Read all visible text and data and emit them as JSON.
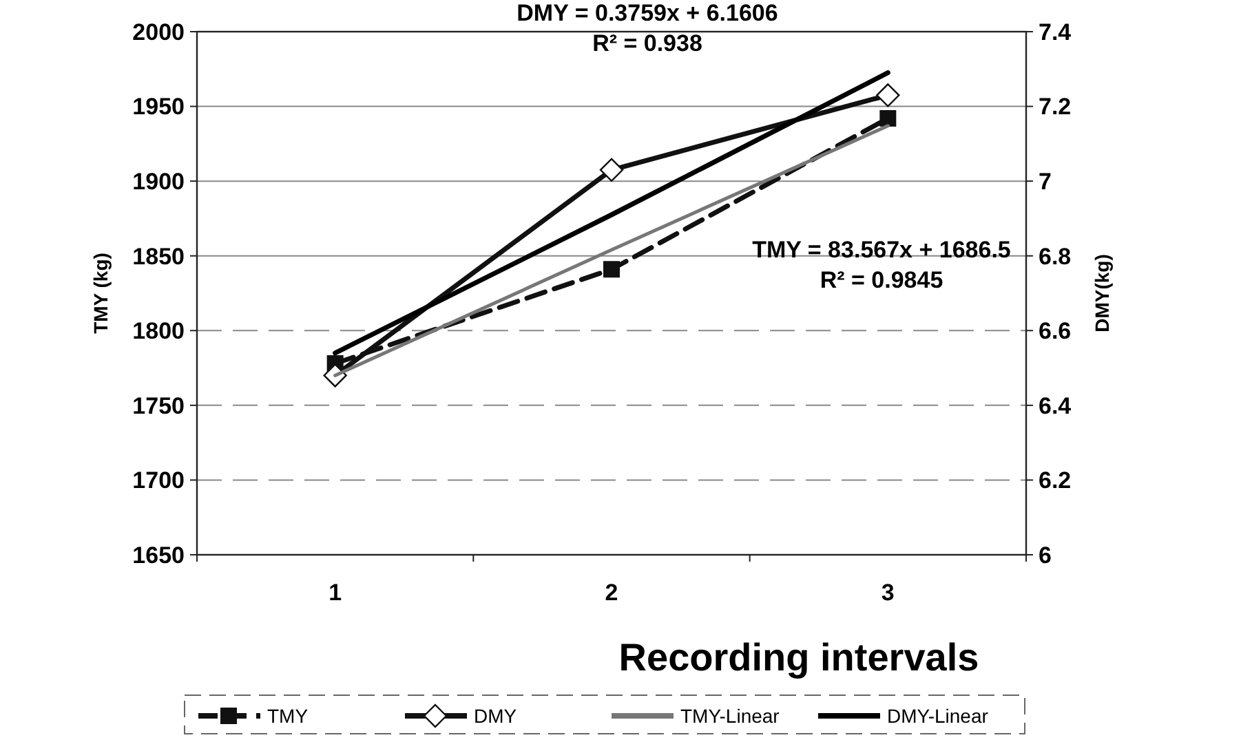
{
  "chart_data": {
    "type": "line",
    "xlabel": "Recording intervals",
    "ylabel": "TMY (kg)",
    "y2label": "DMY(kg)",
    "categories": [
      "1",
      "2",
      "3"
    ],
    "series": [
      {
        "name": "TMY",
        "color": "#111111",
        "values": [
          1778,
          1841,
          1942
        ],
        "marker": "square",
        "line_style": "dashed"
      },
      {
        "name": "DMY",
        "color": "#111111",
        "values": [
          6.48,
          7.03,
          7.23
        ],
        "axis": "y2",
        "marker": "diamond",
        "line_style": "solid"
      },
      {
        "name": "TMY-Linear",
        "color": "#777777",
        "values": [
          1770,
          1854,
          1937
        ],
        "marker": "none",
        "line_style": "solid"
      },
      {
        "name": "DMY-Linear",
        "color": "#000000",
        "values": [
          6.54,
          6.91,
          7.29
        ],
        "axis": "y2",
        "marker": "none",
        "line_style": "solid"
      }
    ],
    "ylim": [
      1650,
      2000
    ],
    "yticks": [
      1650,
      1700,
      1750,
      1800,
      1850,
      1900,
      1950,
      2000
    ],
    "y2lim": [
      6,
      7.4
    ],
    "y2ticks": [
      6,
      6.2,
      6.4,
      6.6,
      6.8,
      7,
      7.2,
      7.4
    ],
    "grid": "y",
    "legend": "bottom",
    "annotations": [
      "DMY = 0.3759x + 6.1606\nR² = 0.938",
      "TMY = 83.567x + 1686.5\nR² = 0.9845"
    ]
  }
}
